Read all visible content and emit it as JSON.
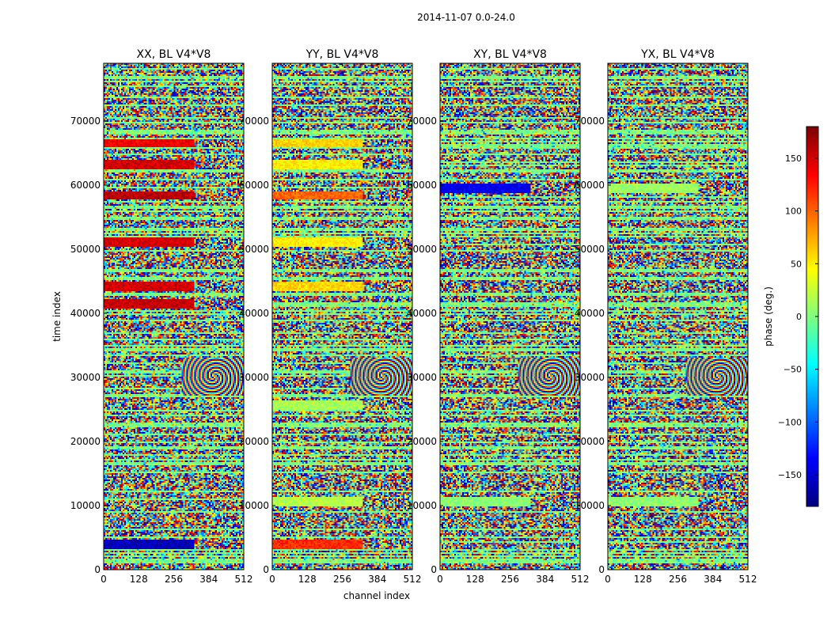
{
  "suptitle": "2014-11-07 0.0-24.0",
  "chart_data": {
    "type": "heatmap",
    "xlabel": "channel index",
    "ylabel": "time index",
    "xlim": [
      0,
      512
    ],
    "ylim": [
      0,
      79000
    ],
    "xticks": [
      0,
      128,
      256,
      384,
      512
    ],
    "yticks": [
      0,
      10000,
      20000,
      30000,
      40000,
      50000,
      60000,
      70000
    ],
    "panels": [
      {
        "title": "XX, BL V4*V8",
        "bands": [
          {
            "t": 3800,
            "phase": -160
          },
          {
            "t": 41400,
            "phase": 155
          },
          {
            "t": 44000,
            "phase": 150
          },
          {
            "t": 51000,
            "phase": 150
          },
          {
            "t": 58300,
            "phase": 160
          },
          {
            "t": 63000,
            "phase": 150
          },
          {
            "t": 66400,
            "phase": 140
          }
        ]
      },
      {
        "title": "YY, BL V4*V8",
        "bands": [
          {
            "t": 3800,
            "phase": 120
          },
          {
            "t": 10500,
            "phase": 20
          },
          {
            "t": 25500,
            "phase": 15
          },
          {
            "t": 44000,
            "phase": 60
          },
          {
            "t": 51000,
            "phase": 50
          },
          {
            "t": 58300,
            "phase": 100
          },
          {
            "t": 63000,
            "phase": 50
          },
          {
            "t": 66400,
            "phase": 60
          }
        ]
      },
      {
        "title": "XY, BL V4*V8",
        "bands": [
          {
            "t": 59300,
            "phase": -140
          },
          {
            "t": 10500,
            "phase": 5
          }
        ]
      },
      {
        "title": "YX, BL V4*V8",
        "bands": [
          {
            "t": 59300,
            "phase": 10
          },
          {
            "t": 10500,
            "phase": 5
          }
        ]
      }
    ],
    "colorbar": {
      "label": "phase (deg.)",
      "range": [
        -180,
        180
      ],
      "ticks": [
        -150,
        -100,
        -50,
        0,
        50,
        100,
        150
      ],
      "tick_labels": [
        "−150",
        "−100",
        "−50",
        "0",
        "50",
        "100",
        "150"
      ],
      "colormap": "jet"
    }
  }
}
